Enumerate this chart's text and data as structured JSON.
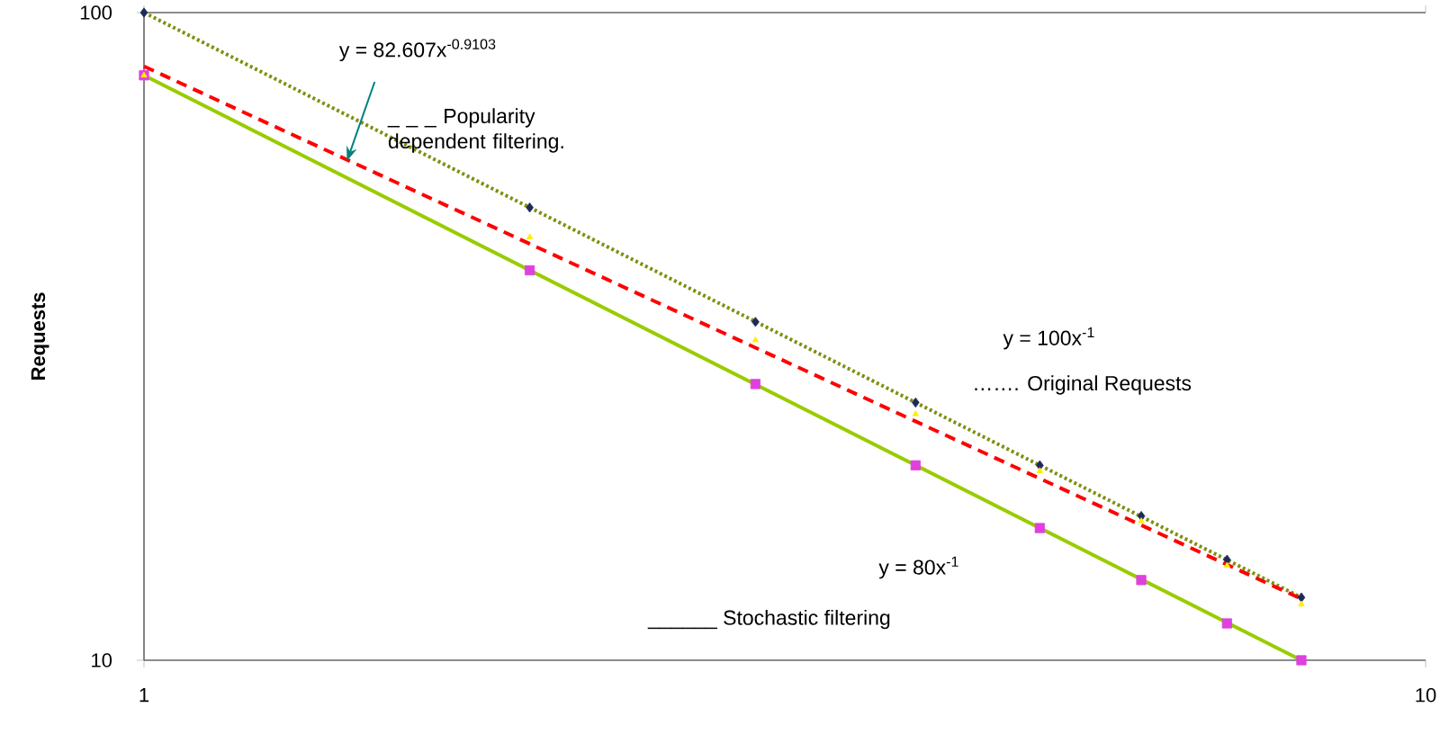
{
  "chart_data": {
    "type": "scatter",
    "ylabel": "Requests",
    "log": "xy",
    "grid": false,
    "xlim": [
      1,
      10
    ],
    "ylim": [
      10,
      100
    ],
    "xticks": [
      1,
      10
    ],
    "yticks": [
      10,
      100
    ],
    "series": [
      {
        "type": "line",
        "color": "#7f8f10",
        "line_style": "dotted",
        "marker": "none",
        "x": [
          1,
          8
        ],
        "values": [
          100,
          12.5
        ]
      },
      {
        "type": "line",
        "color": "#ff0000",
        "line_style": "dashed",
        "marker": "none",
        "x": [
          1,
          8
        ],
        "values": [
          82.6,
          12.44
        ]
      },
      {
        "type": "line",
        "color": "#99cc00",
        "line_style": "solid",
        "marker": "none",
        "x": [
          1,
          8
        ],
        "values": [
          80,
          10
        ]
      },
      {
        "type": "scatter",
        "color": "#1f2a5a",
        "marker": "diamond",
        "x": [
          1,
          2,
          3,
          4,
          5,
          6,
          7,
          8
        ],
        "values": [
          100,
          50,
          33.3,
          25,
          20,
          16.7,
          14.3,
          12.5
        ]
      },
      {
        "type": "scatter",
        "color": "#e040e0",
        "marker": "square",
        "x": [
          1,
          2,
          3,
          4,
          5,
          6,
          7,
          8
        ],
        "values": [
          80,
          40,
          26.7,
          20,
          16,
          13.3,
          11.4,
          10
        ]
      },
      {
        "type": "scatter",
        "color": "#ffee00",
        "marker": "triangle",
        "x": [
          1,
          2,
          3,
          4,
          5,
          6,
          7,
          8
        ],
        "values": [
          80,
          45,
          31.2,
          24,
          19.6,
          16.4,
          14,
          12.2
        ]
      }
    ],
    "annotations": [
      "y = 82.607x$^{-0.9103}$",
      {
        "text": "_ _ _ Popularity dependent filtering.",
        "x": 1.44,
        "y": 59
      },
      "y = 100x$^{-1}$",
      "……. Original Requests",
      "y = 80x$^{-1}$",
      "______ Stochastic filtering"
    ]
  }
}
